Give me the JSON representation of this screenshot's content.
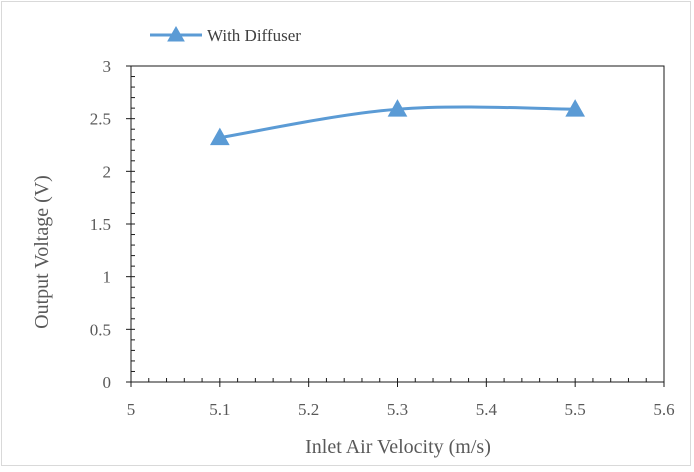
{
  "chart_data": {
    "type": "line",
    "title": "",
    "xlabel": "Inlet Air Velocity (m/s)",
    "ylabel": "Output Voltage (V)",
    "xlim": [
      5,
      5.6
    ],
    "ylim": [
      0,
      3
    ],
    "x_ticks": [
      "5",
      "5.1",
      "5.2",
      "5.3",
      "5.4",
      "5.5",
      "5.6"
    ],
    "y_ticks": [
      "0",
      "0.5",
      "1",
      "1.5",
      "2",
      "2.5",
      "3"
    ],
    "grid": false,
    "legend_position": "top-left",
    "series": [
      {
        "name": "With Diffuser",
        "color": "#5b9bd5",
        "marker": "triangle",
        "smooth": true,
        "x": [
          5.1,
          5.3,
          5.5
        ],
        "y": [
          2.32,
          2.59,
          2.59
        ]
      }
    ]
  }
}
